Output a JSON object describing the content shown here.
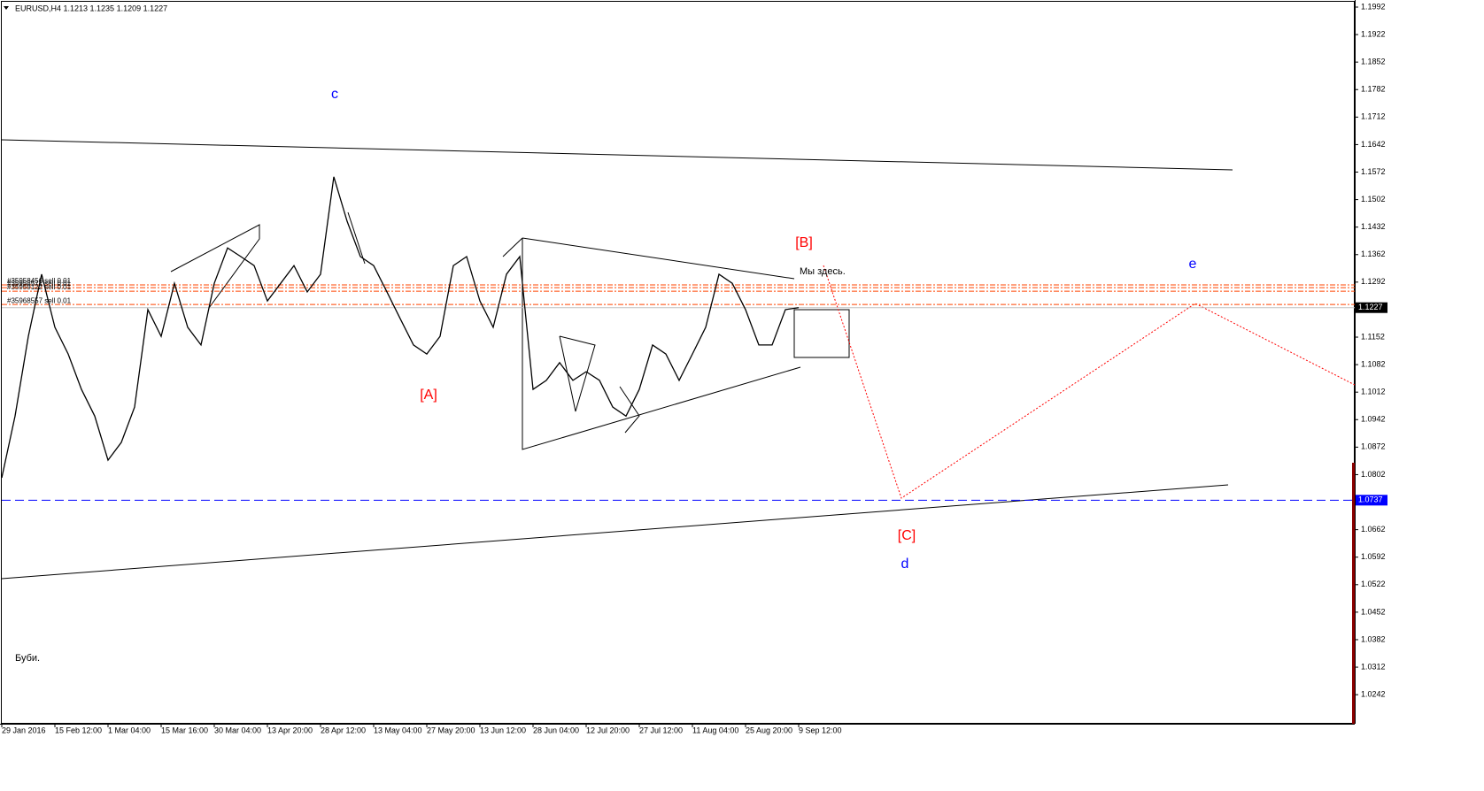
{
  "chart_data": {
    "type": "line",
    "title": "EURUSD,H4  1.1213 1.1235 1.1209 1.1227",
    "categories": [
      "29 Jan 2016",
      null,
      null,
      null,
      "15 Feb 12:00",
      null,
      null,
      null,
      "1 Mar 04:00",
      null,
      null,
      null,
      "15 Mar 16:00",
      null,
      null,
      null,
      "30 Mar 04:00",
      null,
      null,
      null,
      "13 Apr 20:00",
      null,
      null,
      null,
      "28 Apr 12:00",
      null,
      null,
      null,
      "13 May 04:00",
      null,
      null,
      null,
      "27 May 20:00",
      null,
      null,
      null,
      "13 Jun 12:00",
      null,
      null,
      null,
      "28 Jun 04:00",
      null,
      null,
      null,
      "12 Jul 20:00",
      null,
      null,
      null,
      "27 Jul 12:00",
      null,
      null,
      null,
      "11 Aug 04:00",
      null,
      null,
      null,
      "25 Aug 20:00",
      null,
      null,
      null,
      "9 Sep 12:00"
    ],
    "series": [
      {
        "name": "EURUSD",
        "color": "#000000",
        "values": [
          1.0794,
          1.0951,
          1.1154,
          1.1312,
          1.1177,
          1.1109,
          1.1019,
          1.0951,
          1.0839,
          1.0884,
          1.0974,
          1.1222,
          1.1154,
          1.1289,
          1.1177,
          1.1132,
          1.1289,
          1.1379,
          1.1357,
          1.1334,
          1.1244,
          1.1289,
          1.1334,
          1.1267,
          1.1312,
          1.156,
          1.1447,
          1.1357,
          1.1334,
          1.1267,
          1.1199,
          1.1132,
          1.1109,
          1.1154,
          1.1334,
          1.1357,
          1.1244,
          1.1177,
          1.1312,
          1.1357,
          1.1019,
          1.1042,
          1.1087,
          1.1042,
          1.1064,
          1.1042,
          1.0974,
          1.0951,
          1.1019,
          1.1132,
          1.1109,
          1.1042,
          1.1109,
          1.1177,
          1.1312,
          1.1289,
          1.1222,
          1.1132,
          1.1132,
          1.1222,
          1.1227
        ]
      }
    ],
    "ylim": [
      1.0168,
      1.201
    ],
    "yticks": [
      1.1992,
      1.1922,
      1.1852,
      1.1782,
      1.1712,
      1.1642,
      1.1572,
      1.1502,
      1.1432,
      1.1362,
      1.1292,
      1.1152,
      1.1082,
      1.1012,
      1.0942,
      1.0872,
      1.0802,
      1.0662,
      1.0592,
      1.0522,
      1.0452,
      1.0382,
      1.0312,
      1.0242
    ],
    "price_lines": [
      {
        "value": 1.1227,
        "color": "#c0c0c0",
        "label_color": "#000000"
      },
      {
        "value": 1.0737,
        "color": "#0000ff",
        "label_color": "#0000ff"
      }
    ],
    "orders": [
      {
        "label": "#35958456 sell 0.01",
        "value": 1.1285
      },
      {
        "label": "#35958571 sell 0.01",
        "value": 1.1278
      },
      {
        "label": "#35959122 sell 0.01",
        "value": 1.1269
      },
      {
        "label": "#35968557 sell 0.01",
        "value": 1.1235
      }
    ],
    "annotations": {
      "c": "c",
      "B": "[B]",
      "here": "Мы здесь.",
      "e": "e",
      "A": "[A]",
      "C": "[C]",
      "d": "d",
      "note": "Буби."
    }
  }
}
